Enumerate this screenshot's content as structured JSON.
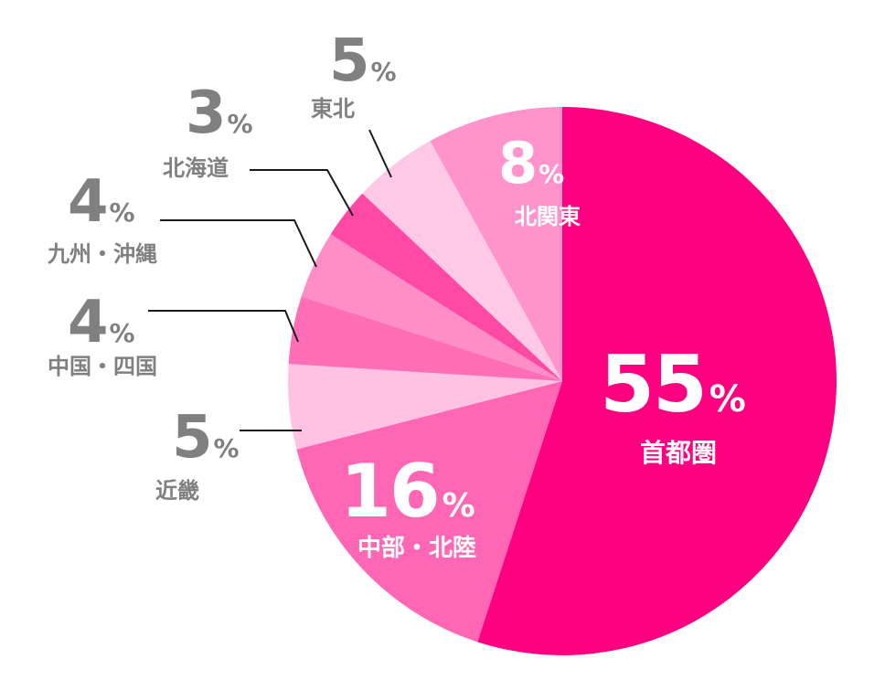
{
  "chart_data": {
    "type": "pie",
    "unit": "%",
    "start": "12 o'clock",
    "direction": "clockwise",
    "slices": [
      {
        "label": "首都圏",
        "value": 55,
        "color": "#FF0080",
        "label_position": "inside",
        "text_color": "#FFFFFF"
      },
      {
        "label": "中部・北陸",
        "value": 16,
        "color": "#FF66B3",
        "label_position": "inside",
        "text_color": "#FFFFFF"
      },
      {
        "label": "近畿",
        "value": 5,
        "color": "#FFC2E3",
        "label_position": "outside",
        "text_color": "#808080"
      },
      {
        "label": "中国・四国",
        "value": 4,
        "color": "#FF6EB6",
        "label_position": "outside",
        "text_color": "#808080"
      },
      {
        "label": "九州・沖縄",
        "value": 4,
        "color": "#FF8EC8",
        "label_position": "outside",
        "text_color": "#808080"
      },
      {
        "label": "北海道",
        "value": 3,
        "color": "#FF4AA5",
        "label_position": "outside",
        "text_color": "#808080"
      },
      {
        "label": "東北",
        "value": 5,
        "color": "#FFC8E5",
        "label_position": "outside",
        "text_color": "#808080"
      },
      {
        "label": "北関東",
        "value": 8,
        "color": "#FF94CC",
        "label_position": "inside",
        "text_color": "#FFFFFF"
      }
    ]
  }
}
